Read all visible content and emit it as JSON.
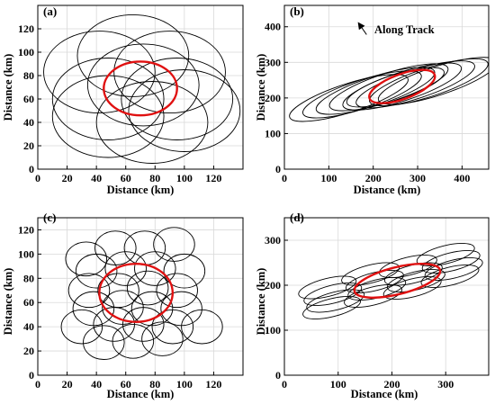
{
  "figure": {
    "background": "#ffffff",
    "grid_color": "#d9d9d9",
    "ellipse_color": "#000000",
    "highlight_color": "#e01010"
  },
  "chart_data": [
    {
      "type": "scatter",
      "panel_label": "(a)",
      "xlabel": "Distance (km)",
      "ylabel": "Distance (km)",
      "xlim": [
        0,
        140
      ],
      "ylim": [
        0,
        140
      ],
      "xticks": [
        0,
        20,
        40,
        60,
        80,
        100,
        120
      ],
      "yticks": [
        0,
        20,
        40,
        60,
        80,
        100,
        120
      ],
      "grid": true,
      "ellipses": [
        {
          "cx": 42,
          "cy": 83,
          "rx": 38,
          "ry": 35,
          "angle": 0
        },
        {
          "cx": 65,
          "cy": 97,
          "rx": 38,
          "ry": 35,
          "angle": 0
        },
        {
          "cx": 90,
          "cy": 83,
          "rx": 38,
          "ry": 35,
          "angle": 0
        },
        {
          "cx": 48,
          "cy": 60,
          "rx": 38,
          "ry": 35,
          "angle": 0
        },
        {
          "cx": 72,
          "cy": 72,
          "rx": 38,
          "ry": 35,
          "angle": 0
        },
        {
          "cx": 95,
          "cy": 60,
          "rx": 38,
          "ry": 35,
          "angle": 0
        },
        {
          "cx": 48,
          "cy": 45,
          "rx": 38,
          "ry": 35,
          "angle": 0
        },
        {
          "cx": 78,
          "cy": 40,
          "rx": 38,
          "ry": 35,
          "angle": 0
        },
        {
          "cx": 100,
          "cy": 50,
          "rx": 38,
          "ry": 35,
          "angle": 0
        }
      ],
      "highlight": {
        "cx": 70,
        "cy": 69,
        "rx": 25,
        "ry": 23,
        "angle": 0
      }
    },
    {
      "type": "scatter",
      "panel_label": "(b)",
      "xlabel": "Distance (km)",
      "ylabel": "Distance (km)",
      "xlim": [
        0,
        460
      ],
      "ylim": [
        0,
        460
      ],
      "xticks": [
        0,
        100,
        200,
        300,
        400
      ],
      "yticks": [
        0,
        100,
        200,
        300,
        400
      ],
      "grid": true,
      "annotation": "Along Track",
      "arrow": {
        "from": [
          185,
          378
        ],
        "to": [
          170,
          405
        ]
      },
      "ellipses": [
        {
          "cx": 145,
          "cy": 200,
          "rx": 140,
          "ry": 40,
          "angle": 18
        },
        {
          "cx": 175,
          "cy": 210,
          "rx": 140,
          "ry": 40,
          "angle": 18
        },
        {
          "cx": 205,
          "cy": 220,
          "rx": 140,
          "ry": 40,
          "angle": 18
        },
        {
          "cx": 235,
          "cy": 230,
          "rx": 140,
          "ry": 40,
          "angle": 18
        },
        {
          "cx": 265,
          "cy": 232,
          "rx": 140,
          "ry": 40,
          "angle": 18
        },
        {
          "cx": 295,
          "cy": 238,
          "rx": 140,
          "ry": 40,
          "angle": 18
        },
        {
          "cx": 325,
          "cy": 244,
          "rx": 140,
          "ry": 40,
          "angle": 18
        },
        {
          "cx": 345,
          "cy": 248,
          "rx": 140,
          "ry": 40,
          "angle": 18
        },
        {
          "cx": 250,
          "cy": 230,
          "rx": 115,
          "ry": 35,
          "angle": 18
        }
      ],
      "highlight": {
        "cx": 265,
        "cy": 232,
        "rx": 78,
        "ry": 35,
        "angle": 20
      }
    },
    {
      "type": "scatter",
      "panel_label": "(c)",
      "xlabel": "Distance (km)",
      "ylabel": "Distance (km)",
      "xlim": [
        0,
        140
      ],
      "ylim": [
        0,
        130
      ],
      "xticks": [
        0,
        20,
        40,
        60,
        80,
        100,
        120
      ],
      "yticks": [
        0,
        20,
        40,
        60,
        80,
        100,
        120
      ],
      "grid": true,
      "ellipses": [
        {
          "cx": 33,
          "cy": 96,
          "rx": 14,
          "ry": 14,
          "angle": 0
        },
        {
          "cx": 53,
          "cy": 105,
          "rx": 14,
          "ry": 14,
          "angle": 0
        },
        {
          "cx": 73,
          "cy": 105,
          "rx": 14,
          "ry": 14,
          "angle": 0
        },
        {
          "cx": 93,
          "cy": 108,
          "rx": 14,
          "ry": 14,
          "angle": 0
        },
        {
          "cx": 40,
          "cy": 86,
          "rx": 14,
          "ry": 14,
          "angle": 0
        },
        {
          "cx": 60,
          "cy": 88,
          "rx": 14,
          "ry": 14,
          "angle": 0
        },
        {
          "cx": 80,
          "cy": 88,
          "rx": 14,
          "ry": 14,
          "angle": 0
        },
        {
          "cx": 100,
          "cy": 86,
          "rx": 14,
          "ry": 14,
          "angle": 0
        },
        {
          "cx": 35,
          "cy": 70,
          "rx": 14,
          "ry": 14,
          "angle": 0
        },
        {
          "cx": 55,
          "cy": 70,
          "rx": 14,
          "ry": 14,
          "angle": 0
        },
        {
          "cx": 75,
          "cy": 72,
          "rx": 14,
          "ry": 14,
          "angle": 0
        },
        {
          "cx": 95,
          "cy": 70,
          "rx": 14,
          "ry": 14,
          "angle": 0
        },
        {
          "cx": 38,
          "cy": 55,
          "rx": 14,
          "ry": 14,
          "angle": 0
        },
        {
          "cx": 58,
          "cy": 56,
          "rx": 14,
          "ry": 14,
          "angle": 0
        },
        {
          "cx": 78,
          "cy": 55,
          "rx": 14,
          "ry": 14,
          "angle": 0
        },
        {
          "cx": 98,
          "cy": 55,
          "rx": 14,
          "ry": 14,
          "angle": 0
        },
        {
          "cx": 30,
          "cy": 40,
          "rx": 14,
          "ry": 14,
          "angle": 0
        },
        {
          "cx": 52,
          "cy": 42,
          "rx": 14,
          "ry": 14,
          "angle": 0
        },
        {
          "cx": 72,
          "cy": 42,
          "rx": 14,
          "ry": 14,
          "angle": 0
        },
        {
          "cx": 92,
          "cy": 40,
          "rx": 14,
          "ry": 14,
          "angle": 0
        },
        {
          "cx": 112,
          "cy": 40,
          "rx": 14,
          "ry": 14,
          "angle": 0
        },
        {
          "cx": 45,
          "cy": 27,
          "rx": 14,
          "ry": 14,
          "angle": 0
        },
        {
          "cx": 65,
          "cy": 28,
          "rx": 14,
          "ry": 14,
          "angle": 0
        },
        {
          "cx": 85,
          "cy": 30,
          "rx": 14,
          "ry": 14,
          "angle": 0
        }
      ],
      "highlight": {
        "cx": 67,
        "cy": 68,
        "rx": 25,
        "ry": 24,
        "angle": 0
      }
    },
    {
      "type": "scatter",
      "panel_label": "(d)",
      "xlabel": "Distance (km)",
      "ylabel": "Distance (km)",
      "xlim": [
        0,
        380
      ],
      "ylim": [
        0,
        350
      ],
      "xticks": [
        0,
        100,
        200,
        300
      ],
      "yticks": [
        0,
        100,
        200,
        300
      ],
      "grid": true,
      "ellipses": [
        {
          "cx": 80,
          "cy": 195,
          "rx": 55,
          "ry": 20,
          "angle": 14
        },
        {
          "cx": 90,
          "cy": 180,
          "rx": 55,
          "ry": 20,
          "angle": 14
        },
        {
          "cx": 95,
          "cy": 165,
          "rx": 55,
          "ry": 20,
          "angle": 14
        },
        {
          "cx": 88,
          "cy": 150,
          "rx": 55,
          "ry": 20,
          "angle": 14
        },
        {
          "cx": 160,
          "cy": 225,
          "rx": 55,
          "ry": 20,
          "angle": 14
        },
        {
          "cx": 168,
          "cy": 208,
          "rx": 55,
          "ry": 20,
          "angle": 14
        },
        {
          "cx": 172,
          "cy": 192,
          "rx": 55,
          "ry": 20,
          "angle": 14
        },
        {
          "cx": 165,
          "cy": 176,
          "rx": 55,
          "ry": 20,
          "angle": 14
        },
        {
          "cx": 230,
          "cy": 242,
          "rx": 55,
          "ry": 20,
          "angle": 14
        },
        {
          "cx": 240,
          "cy": 225,
          "rx": 55,
          "ry": 20,
          "angle": 14
        },
        {
          "cx": 245,
          "cy": 210,
          "rx": 55,
          "ry": 20,
          "angle": 14
        },
        {
          "cx": 238,
          "cy": 194,
          "rx": 55,
          "ry": 20,
          "angle": 14
        },
        {
          "cx": 300,
          "cy": 268,
          "rx": 55,
          "ry": 20,
          "angle": 14
        },
        {
          "cx": 310,
          "cy": 252,
          "rx": 55,
          "ry": 20,
          "angle": 14
        },
        {
          "cx": 315,
          "cy": 236,
          "rx": 55,
          "ry": 20,
          "angle": 14
        },
        {
          "cx": 308,
          "cy": 220,
          "rx": 55,
          "ry": 20,
          "angle": 14
        }
      ],
      "highlight": {
        "cx": 210,
        "cy": 210,
        "rx": 82,
        "ry": 30,
        "angle": 14
      }
    }
  ]
}
